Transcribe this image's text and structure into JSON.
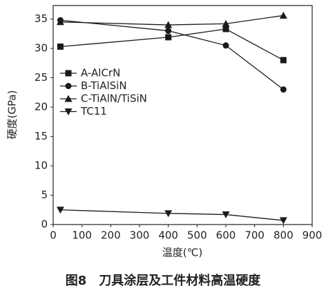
{
  "chart_data": {
    "type": "line",
    "title": "图8　刀具涂层及工件材料高温硬度",
    "x_label": "温度(℃)",
    "y_label": "硬度(GPa)",
    "x": [
      25,
      400,
      600,
      800
    ],
    "series": [
      {
        "name": "A-AlCrN",
        "color": "#1a1a1a",
        "marker": "square",
        "values": [
          30.3,
          31.9,
          33.3,
          28.0
        ]
      },
      {
        "name": "B-TiAlSiN",
        "color": "#1a1a1a",
        "marker": "circle",
        "values": [
          34.8,
          33.0,
          30.5,
          23.0
        ]
      },
      {
        "name": "C-TiAlN/TiSiN",
        "color": "#1a1a1a",
        "marker": "triangle-up",
        "values": [
          34.5,
          34.0,
          34.2,
          35.6
        ]
      },
      {
        "name": "TC11",
        "color": "#1a1a1a",
        "marker": "triangle-down",
        "values": [
          2.5,
          1.9,
          1.7,
          0.7
        ]
      }
    ],
    "xlim": [
      0,
      900
    ],
    "xticks": [
      0,
      100,
      200,
      300,
      400,
      500,
      600,
      700,
      800,
      900
    ],
    "ylim": [
      0,
      37.3
    ],
    "yticks": [
      0,
      5,
      10,
      15,
      20,
      25,
      30,
      35
    ],
    "legend": "left",
    "grid": false
  }
}
